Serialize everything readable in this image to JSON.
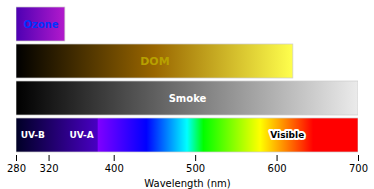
{
  "chart_data": {
    "type": "bar",
    "orientation": "horizontal",
    "xlabel": "Wavelength (nm)",
    "categories": [
      "Ozone",
      "DOM",
      "Smoke",
      null
    ],
    "values": [
      340,
      620,
      700,
      700
    ],
    "xlim": [
      280,
      700
    ],
    "xticks": [
      280,
      320,
      400,
      500,
      600,
      700
    ],
    "tick_labels": "x",
    "grid": false,
    "annotations": [
      {
        "text": "UV-B",
        "x": 300,
        "color": "white"
      },
      {
        "text": "UV-A",
        "x": 360,
        "color": "white"
      },
      {
        "text": "Visible",
        "x": 612.5,
        "color": "black"
      }
    ]
  }
}
